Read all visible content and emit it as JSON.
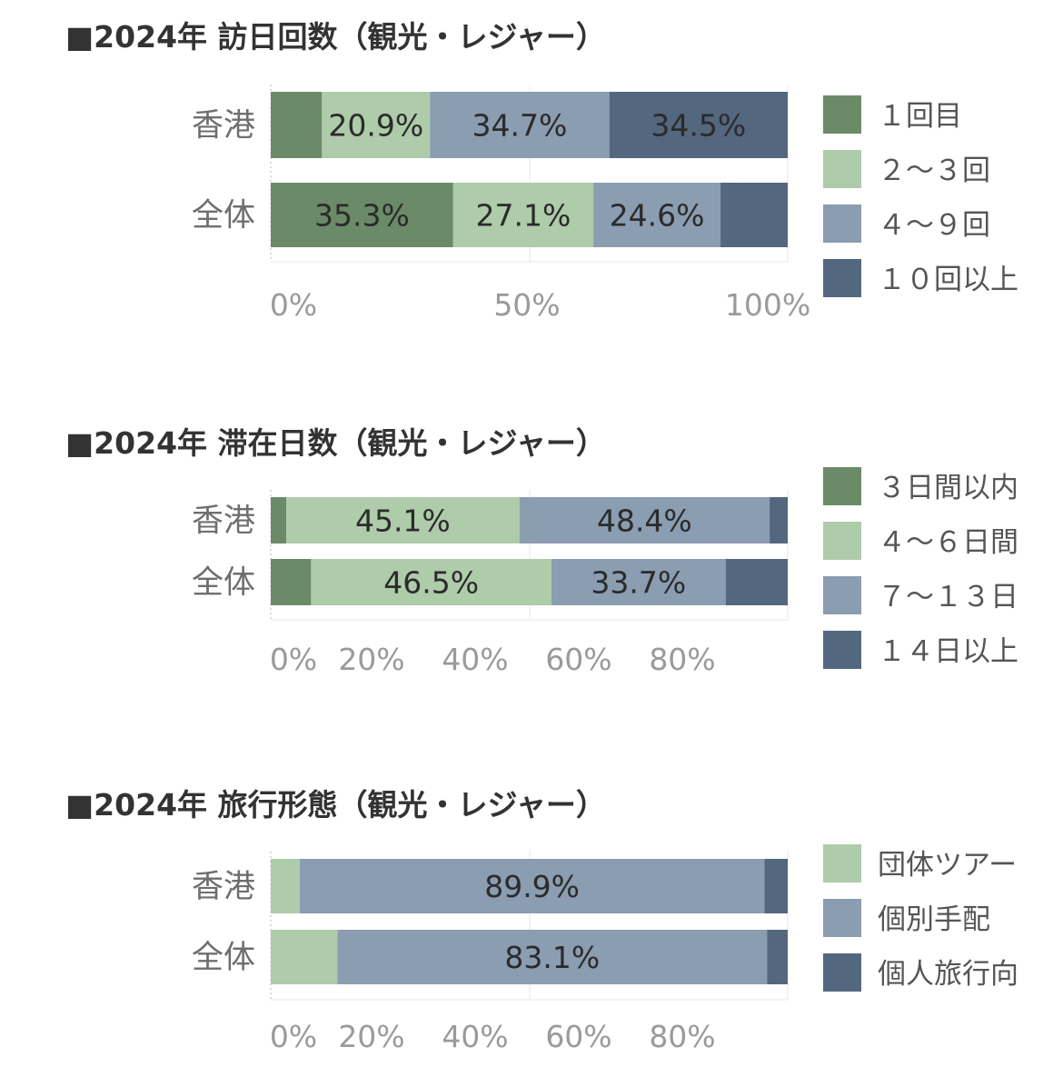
{
  "colors": {
    "dark_green": "#6b8b68",
    "light_green": "#aecbaa",
    "blue_gray": "#8a9db1",
    "slate": "#53677f"
  },
  "chart_data": [
    {
      "type": "bar",
      "orientation": "horizontal",
      "stacked": true,
      "title": "■2024年 訪日回数（観光・レジャー）",
      "categories": [
        "香港",
        "全体"
      ],
      "series": [
        {
          "name": "１回目",
          "color": "#6b8b68",
          "values": [
            9.9,
            35.3
          ],
          "labels": [
            "",
            "35.3%"
          ]
        },
        {
          "name": "２～３回",
          "color": "#aecbaa",
          "values": [
            20.9,
            27.1
          ],
          "labels": [
            "20.9%",
            "27.1%"
          ]
        },
        {
          "name": "４～９回",
          "color": "#8a9db1",
          "values": [
            34.7,
            24.6
          ],
          "labels": [
            "34.7%",
            "24.6%"
          ]
        },
        {
          "name": "１０回以上",
          "color": "#53677f",
          "values": [
            34.5,
            13.0
          ],
          "labels": [
            "34.5%",
            ""
          ]
        }
      ],
      "xticks": [
        "0%",
        "50%",
        "100%"
      ],
      "xlim": [
        0,
        100
      ],
      "legend_position": "right"
    },
    {
      "type": "bar",
      "orientation": "horizontal",
      "stacked": true,
      "title": "■2024年 滞在日数（観光・レジャー）",
      "categories": [
        "香港",
        "全体"
      ],
      "series": [
        {
          "name": "３日間以内",
          "color": "#6b8b68",
          "values": [
            3.0,
            7.8
          ],
          "labels": [
            "",
            ""
          ]
        },
        {
          "name": "４～６日間",
          "color": "#aecbaa",
          "values": [
            45.1,
            46.5
          ],
          "labels": [
            "45.1%",
            "46.5%"
          ]
        },
        {
          "name": "７～１３日",
          "color": "#8a9db1",
          "values": [
            48.4,
            33.7
          ],
          "labels": [
            "48.4%",
            "33.7%"
          ]
        },
        {
          "name": "１４日以上",
          "color": "#53677f",
          "values": [
            3.5,
            12.0
          ],
          "labels": [
            "",
            ""
          ]
        }
      ],
      "xticks": [
        "0%",
        "20%",
        "40%",
        "60%",
        "80%"
      ],
      "xlim": [
        0,
        100
      ],
      "legend_position": "right"
    },
    {
      "type": "bar",
      "orientation": "horizontal",
      "stacked": true,
      "title": "■2024年 旅行形態（観光・レジャー）",
      "categories": [
        "香港",
        "全体"
      ],
      "series": [
        {
          "name": "団体ツアー",
          "color": "#aecbaa",
          "values": [
            5.6,
            12.9
          ],
          "labels": [
            "",
            ""
          ]
        },
        {
          "name": "個別手配",
          "color": "#8a9db1",
          "values": [
            89.9,
            83.1
          ],
          "labels": [
            "89.9%",
            "83.1%"
          ]
        },
        {
          "name": "個人旅行向",
          "color": "#53677f",
          "values": [
            4.5,
            4.0
          ],
          "labels": [
            "",
            ""
          ]
        }
      ],
      "xticks": [
        "0%",
        "20%",
        "40%",
        "60%",
        "80%"
      ],
      "xlim": [
        0,
        100
      ],
      "legend_position": "right"
    }
  ]
}
